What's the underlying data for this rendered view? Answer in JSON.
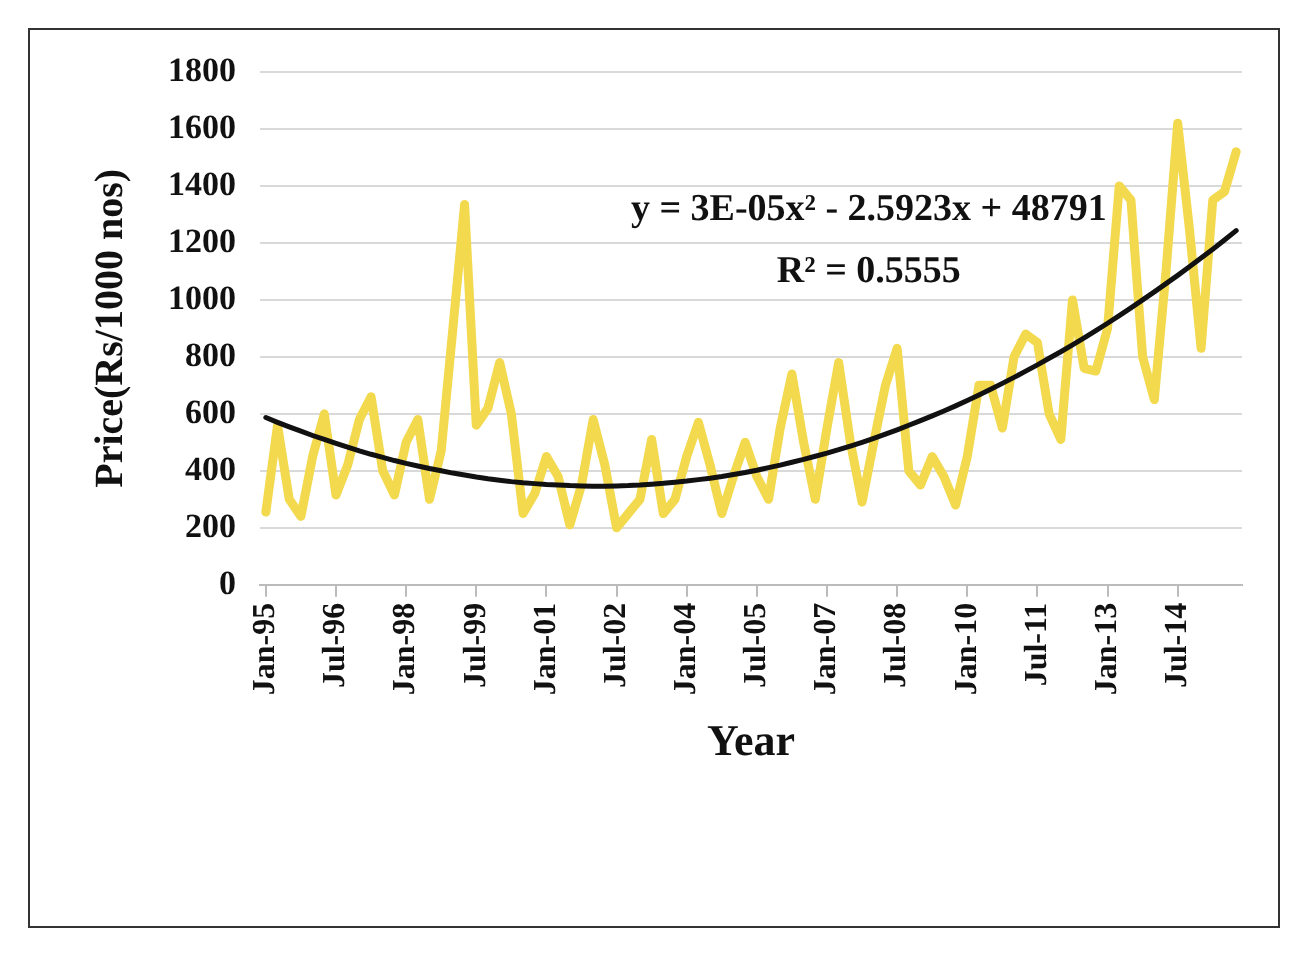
{
  "chart_data": {
    "type": "line",
    "xlabel": "Year",
    "ylabel": "Price(Rs/1000 nos)",
    "categories": [
      "Jan-95",
      null,
      null,
      null,
      null,
      null,
      "Jul-96",
      null,
      null,
      null,
      null,
      null,
      "Jan-98",
      null,
      null,
      null,
      null,
      null,
      "Jul-99",
      null,
      null,
      null,
      null,
      null,
      "Jan-01",
      null,
      null,
      null,
      null,
      null,
      "Jul-02",
      null,
      null,
      null,
      null,
      null,
      "Jan-04",
      null,
      null,
      null,
      null,
      null,
      "Jul-05",
      null,
      null,
      null,
      null,
      null,
      "Jan-07",
      null,
      null,
      null,
      null,
      null,
      "Jul-08",
      null,
      null,
      null,
      null,
      null,
      "Jan-10",
      null,
      null,
      null,
      null,
      null,
      "Jul-11",
      null,
      null,
      null,
      null,
      null,
      "Jan-13",
      null,
      null,
      null,
      null,
      null,
      "Jul-14",
      null,
      null,
      null,
      null,
      null
    ],
    "series": [
      {
        "color": "#f3d94e",
        "values": [
          255,
          560,
          300,
          240,
          450,
          600,
          315,
          420,
          580,
          660,
          400,
          315,
          500,
          580,
          300,
          470,
          900,
          1335,
          560,
          620,
          780,
          600,
          250,
          320,
          450,
          380,
          210,
          350,
          580,
          420,
          200,
          250,
          300,
          510,
          250,
          300,
          450,
          570,
          420,
          250,
          380,
          500,
          380,
          300,
          550,
          740,
          500,
          300,
          550,
          780,
          500,
          290,
          500,
          700,
          830,
          400,
          350,
          450,
          380,
          280,
          450,
          700,
          700,
          550,
          800,
          880,
          850,
          600,
          510,
          1000,
          760,
          750,
          900,
          1400,
          1350,
          800,
          650,
          1100,
          1620,
          1250,
          830,
          1350,
          1380,
          1520
        ]
      },
      {
        "color": "#111111",
        "values": [
          587,
          570,
          554,
          539,
          524,
          510,
          496,
          483,
          470,
          458,
          447,
          436,
          426,
          417,
          408,
          400,
          392,
          385,
          378,
          372,
          367,
          362,
          358,
          355,
          352,
          350,
          348,
          347,
          346,
          346,
          347,
          348,
          350,
          353,
          356,
          360,
          364,
          369,
          374,
          380,
          387,
          394,
          402,
          411,
          420,
          430,
          440,
          451,
          462,
          474,
          487,
          500,
          514,
          529,
          544,
          560,
          576,
          593,
          610,
          628,
          647,
          666,
          686,
          707,
          728,
          750,
          772,
          795,
          818,
          842,
          867,
          892,
          918,
          945,
          972,
          1000,
          1028,
          1057,
          1086,
          1116,
          1147,
          1178,
          1210,
          1243
        ]
      }
    ],
    "ylim": [
      0,
      1800
    ],
    "yticks": [
      0,
      200,
      400,
      600,
      800,
      1000,
      1200,
      1400,
      1600,
      1800
    ],
    "grid": "y",
    "legend": false,
    "marker": "none",
    "annotations": [
      "y = 3E-05x² - 2.5923x + 48791",
      "R² = 0.5555"
    ]
  }
}
